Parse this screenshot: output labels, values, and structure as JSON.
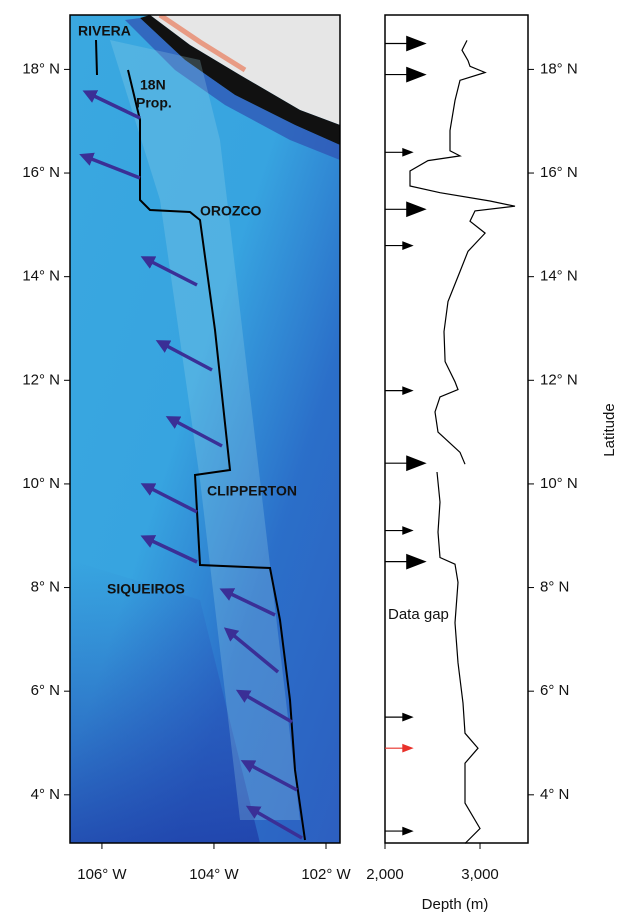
{
  "chart_data": [
    {
      "type": "map",
      "xlim": [
        -106.57,
        -101.75
      ],
      "ylim": [
        3.07,
        19.05
      ],
      "xticks": [
        {
          "value": -106,
          "label": "106° W"
        },
        {
          "value": -104,
          "label": "104° W"
        },
        {
          "value": -102,
          "label": "102° W"
        }
      ],
      "yticks": [
        {
          "value": 4,
          "label": "4° N"
        },
        {
          "value": 6,
          "label": "6° N"
        },
        {
          "value": 8,
          "label": "8° N"
        },
        {
          "value": 10,
          "label": "10° N"
        },
        {
          "value": 12,
          "label": "12° N"
        },
        {
          "value": 14,
          "label": "14° N"
        },
        {
          "value": 16,
          "label": "16° N"
        },
        {
          "value": 18,
          "label": "18° N"
        }
      ],
      "labels": [
        "RIVERA",
        "18N",
        "Prop.",
        "OROZCO",
        "CLIPPERTON",
        "SIQUEIROS"
      ]
    },
    {
      "type": "line",
      "xlabel": "Depth (m)",
      "ylabel": "Latitude",
      "annotation": "Data gap",
      "xlim": [
        2000,
        3505
      ],
      "ylim": [
        3.07,
        19.05
      ],
      "xticks": [
        {
          "value": 2000,
          "label": "2,000"
        },
        {
          "value": 3000,
          "label": "3,000"
        }
      ],
      "yticks": [
        {
          "value": 4,
          "label": "4° N"
        },
        {
          "value": 6,
          "label": "6° N"
        },
        {
          "value": 8,
          "label": "8° N"
        },
        {
          "value": 10,
          "label": "10° N"
        },
        {
          "value": 12,
          "label": "12° N"
        },
        {
          "value": 14,
          "label": "14° N"
        },
        {
          "value": 16,
          "label": "16° N"
        },
        {
          "value": 18,
          "label": "18° N"
        }
      ],
      "series": [
        {
          "color": "#000000",
          "y": [
            18.56,
            18.37,
            18.17,
            18.06,
            17.94,
            17.79,
            17.4,
            16.82,
            16.43,
            16.33,
            16.24,
            16.04,
            15.75,
            15.62,
            15.46,
            15.36,
            15.27,
            15.07,
            14.84,
            14.49,
            14.1,
            13.52,
            12.94,
            12.36,
            11.97,
            11.82,
            11.68,
            11.39,
            11.0,
            10.61,
            10.38,
            null,
            10.23,
            9.65,
            9.07,
            8.58,
            8.45,
            8.1,
            7.32,
            6.55,
            5.77,
            5.19,
            4.9,
            4.61,
            3.84,
            3.35,
            3.06
          ],
          "values": [
            2863,
            2810,
            2874,
            2895,
            3053,
            2789,
            2737,
            2684,
            2684,
            2789,
            2453,
            2263,
            2263,
            2579,
            3105,
            3368,
            2947,
            2895,
            3053,
            2874,
            2789,
            2663,
            2621,
            2632,
            2737,
            2768,
            2579,
            2526,
            2558,
            2789,
            2842,
            null,
            2547,
            2579,
            2558,
            2579,
            2737,
            2768,
            2737,
            2768,
            2821,
            2842,
            2979,
            2842,
            2842,
            3000,
            2842
          ]
        }
      ],
      "arrows": {
        "large": [
          18.5,
          17.9,
          15.3,
          10.4,
          8.5
        ],
        "small": [
          16.4,
          14.6,
          11.8,
          9.1,
          5.5,
          3.3
        ],
        "highlight": [
          4.9
        ]
      },
      "arrow_colors": {
        "large": "#000000",
        "small": "#000000",
        "highlight": "#e8312a"
      }
    }
  ]
}
